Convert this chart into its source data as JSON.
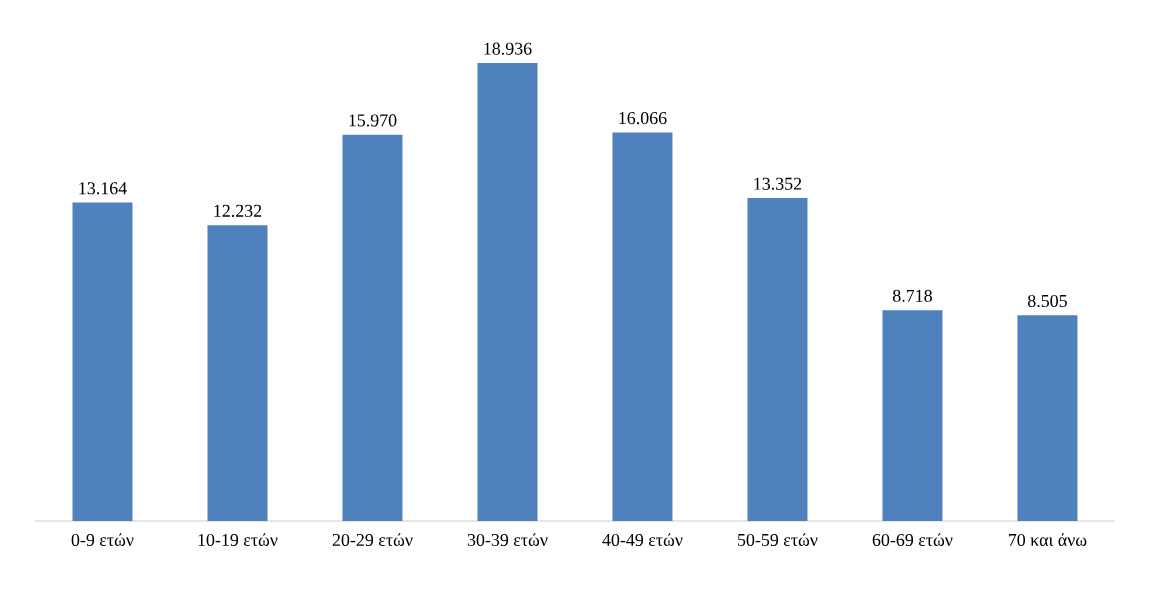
{
  "chart_data": {
    "type": "bar",
    "categories": [
      "0-9 ετών",
      "10-19 ετών",
      "20-29 ετών",
      "30-39 ετών",
      "40-49 ετών",
      "50-59 ετών",
      "60-69 ετών",
      "70 και άνω"
    ],
    "values": [
      13164,
      12232,
      15970,
      18936,
      16066,
      13352,
      8718,
      8505
    ],
    "value_labels": [
      "13.164",
      "12.232",
      "15.970",
      "18.936",
      "16.066",
      "13.352",
      "8.718",
      "8.505"
    ],
    "color": "#4f81bd"
  }
}
